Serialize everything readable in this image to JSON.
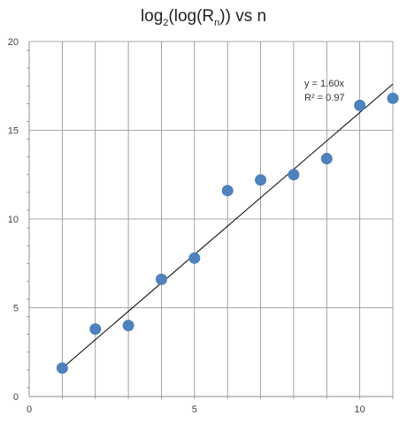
{
  "chart_data": {
    "type": "scatter",
    "title": {
      "log_a": "log",
      "sub_a": "2",
      "mid": "(log(R",
      "sub_b": "n",
      "end": ")) vs n"
    },
    "x": [
      1,
      2,
      3,
      4,
      5,
      6,
      7,
      8,
      9,
      10,
      11
    ],
    "y": [
      1.6,
      3.8,
      4.0,
      6.6,
      7.8,
      11.6,
      12.2,
      12.5,
      13.4,
      16.4,
      16.8
    ],
    "xlim": [
      0,
      11
    ],
    "ylim": [
      0,
      20
    ],
    "x_ticks": [
      0,
      5,
      10
    ],
    "x_tick_labels": [
      "0",
      "5",
      "10"
    ],
    "y_ticks": [
      0,
      5,
      10,
      15,
      20
    ],
    "y_tick_labels": [
      "0",
      "5",
      "10",
      "15",
      "20"
    ],
    "grid": true,
    "trendline": {
      "slope": 1.6,
      "intercept": 0,
      "x_range": [
        1,
        11
      ]
    },
    "equation_label": "y = 1.60x",
    "r2_label": "R² = 0.97",
    "colors": {
      "marker": "#4f81bd",
      "grid": "#8c8c8c",
      "trendline": "#000000"
    }
  }
}
